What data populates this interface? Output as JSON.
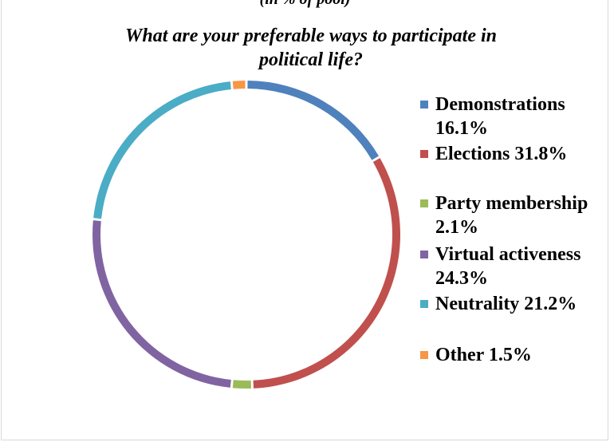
{
  "header": {
    "clipped_text": "(in % of pool)",
    "title_line1": "What are your preferable ways to participate in",
    "title_line2": "political life?"
  },
  "chart_data": {
    "type": "pie",
    "title": "What are your preferable ways to participate in political life?",
    "slices": [
      {
        "name": "Demonstrations",
        "value": 16.1,
        "label": "Demonstrations 16.1%",
        "color": "#4f81bd"
      },
      {
        "name": "Elections",
        "value": 31.8,
        "label": "Elections 31.8%",
        "color": "#c0504d"
      },
      {
        "name": "Party membership",
        "value": 2.1,
        "label": "Party membership 2.1%",
        "color": "#9bbb59"
      },
      {
        "name": "Virtual activeness",
        "value": 24.3,
        "label": "Virtual activeness 24.3%",
        "color": "#8064a2"
      },
      {
        "name": "Neutrality",
        "value": 21.2,
        "label": "Neutrality 21.2%",
        "color": "#4bacc6"
      },
      {
        "name": "Other",
        "value": 1.5,
        "label": "Other 1.5%",
        "color": "#f79646"
      }
    ],
    "legend_position": "right"
  }
}
